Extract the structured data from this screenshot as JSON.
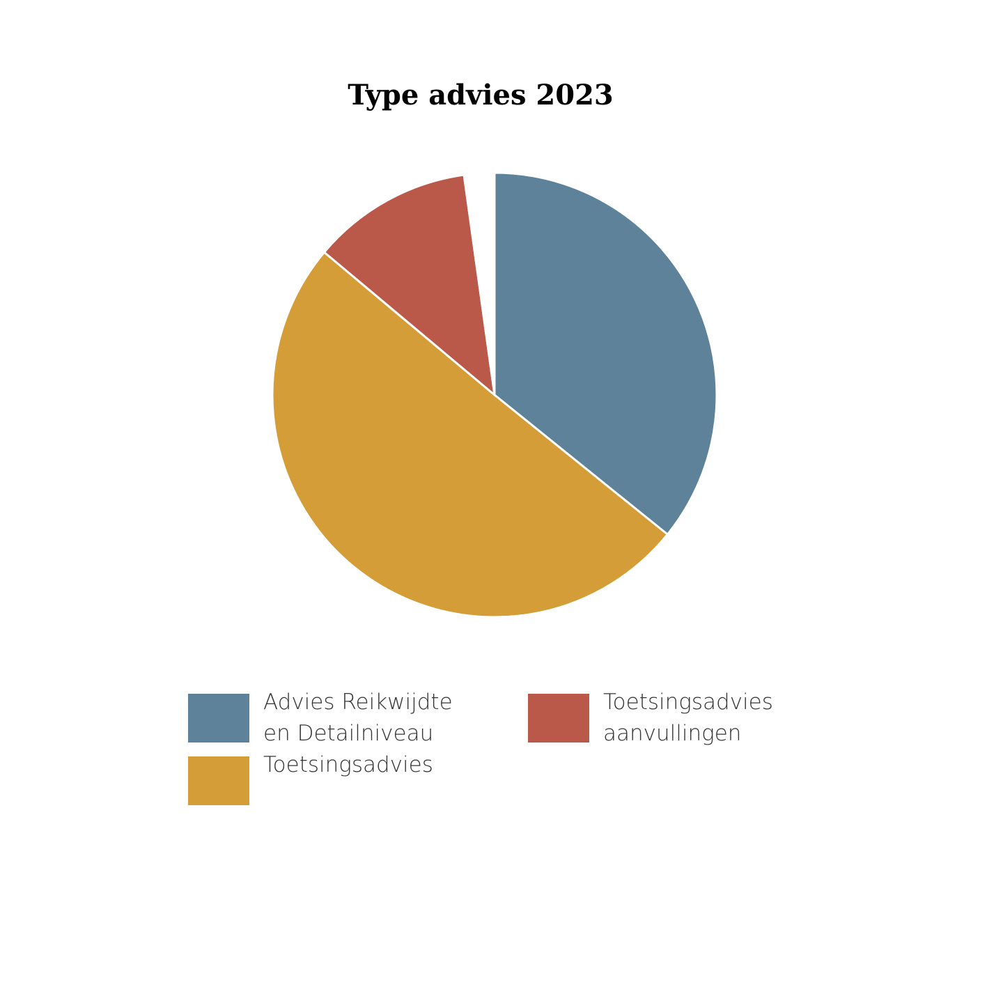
{
  "chart_data": {
    "type": "pie",
    "title": "Type advies 2023",
    "categories": [
      "Advies Reikwijdte\nen Detailniveau",
      "Toetsingsadvies",
      "Toetsingsadvies\naanvullingen",
      null
    ],
    "values": [
      35.8,
      50.3,
      11.7,
      2.2
    ],
    "colors": [
      "#5d8299",
      "#d49d37",
      "#ba5849",
      "#ffffff"
    ]
  }
}
